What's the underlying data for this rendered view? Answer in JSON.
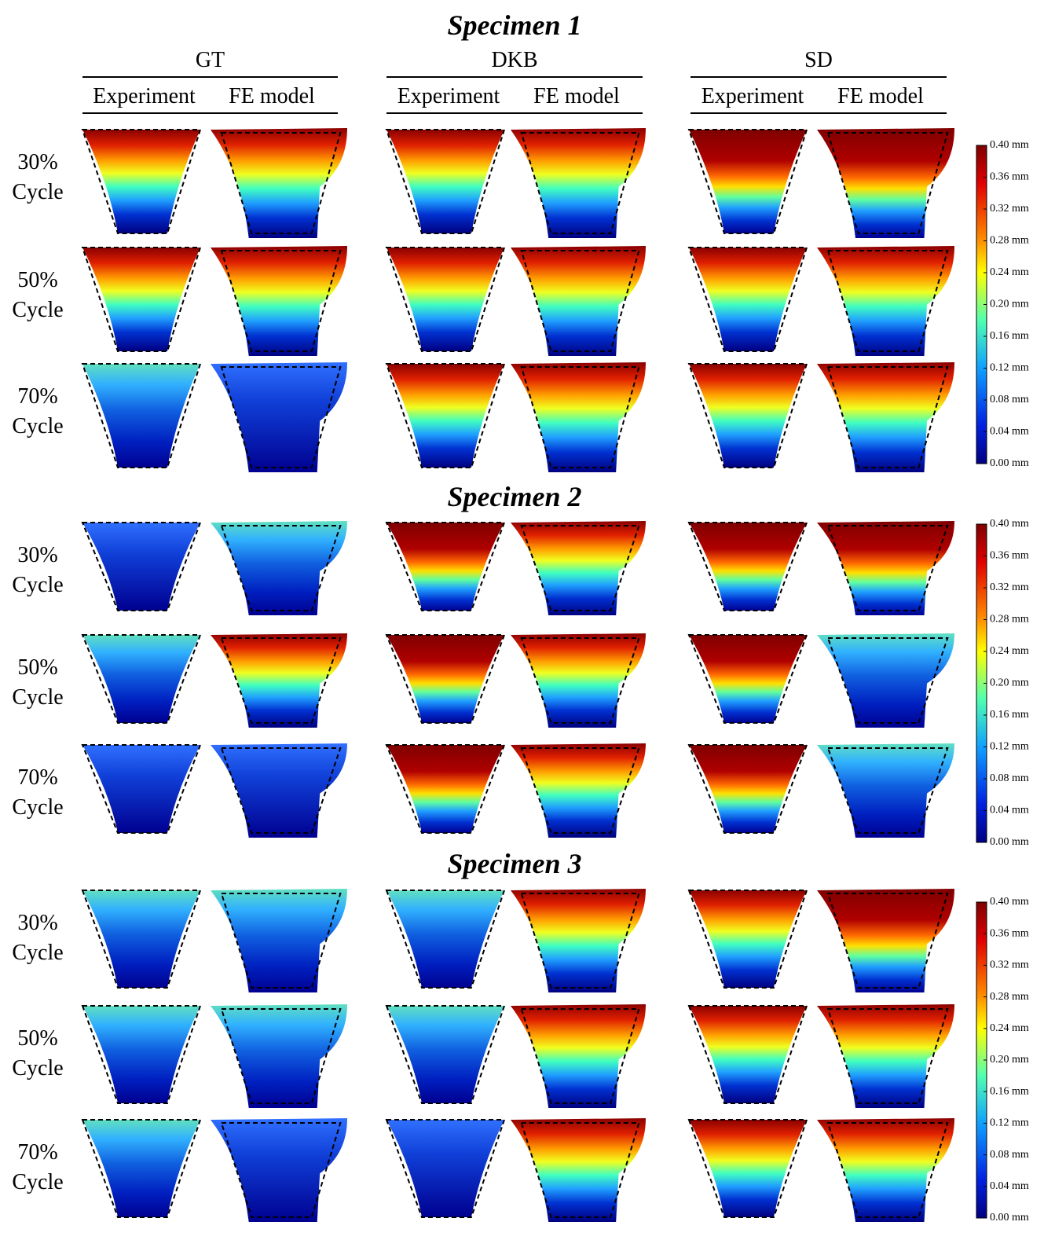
{
  "specimens": [
    {
      "title": "Specimen 1"
    },
    {
      "title": "Specimen 2"
    },
    {
      "title": "Specimen 3"
    }
  ],
  "columns": [
    {
      "method": "GT",
      "subcolumns": [
        "Experiment",
        "FE model"
      ]
    },
    {
      "method": "DKB",
      "subcolumns": [
        "Experiment",
        "FE model"
      ]
    },
    {
      "method": "SD",
      "subcolumns": [
        "Experiment",
        "FE model"
      ]
    }
  ],
  "rows": [
    {
      "percent": "30%",
      "label": "Cycle"
    },
    {
      "percent": "50%",
      "label": "Cycle"
    },
    {
      "percent": "70%",
      "label": "Cycle"
    }
  ],
  "colorbar": {
    "ticks": [
      "0.40 mm",
      "0.36 mm",
      "0.32 mm",
      "0.28 mm",
      "0.24 mm",
      "0.20 mm",
      "0.16 mm",
      "0.12 mm",
      "0.08 mm",
      "0.04 mm",
      "0.00 mm"
    ]
  }
}
